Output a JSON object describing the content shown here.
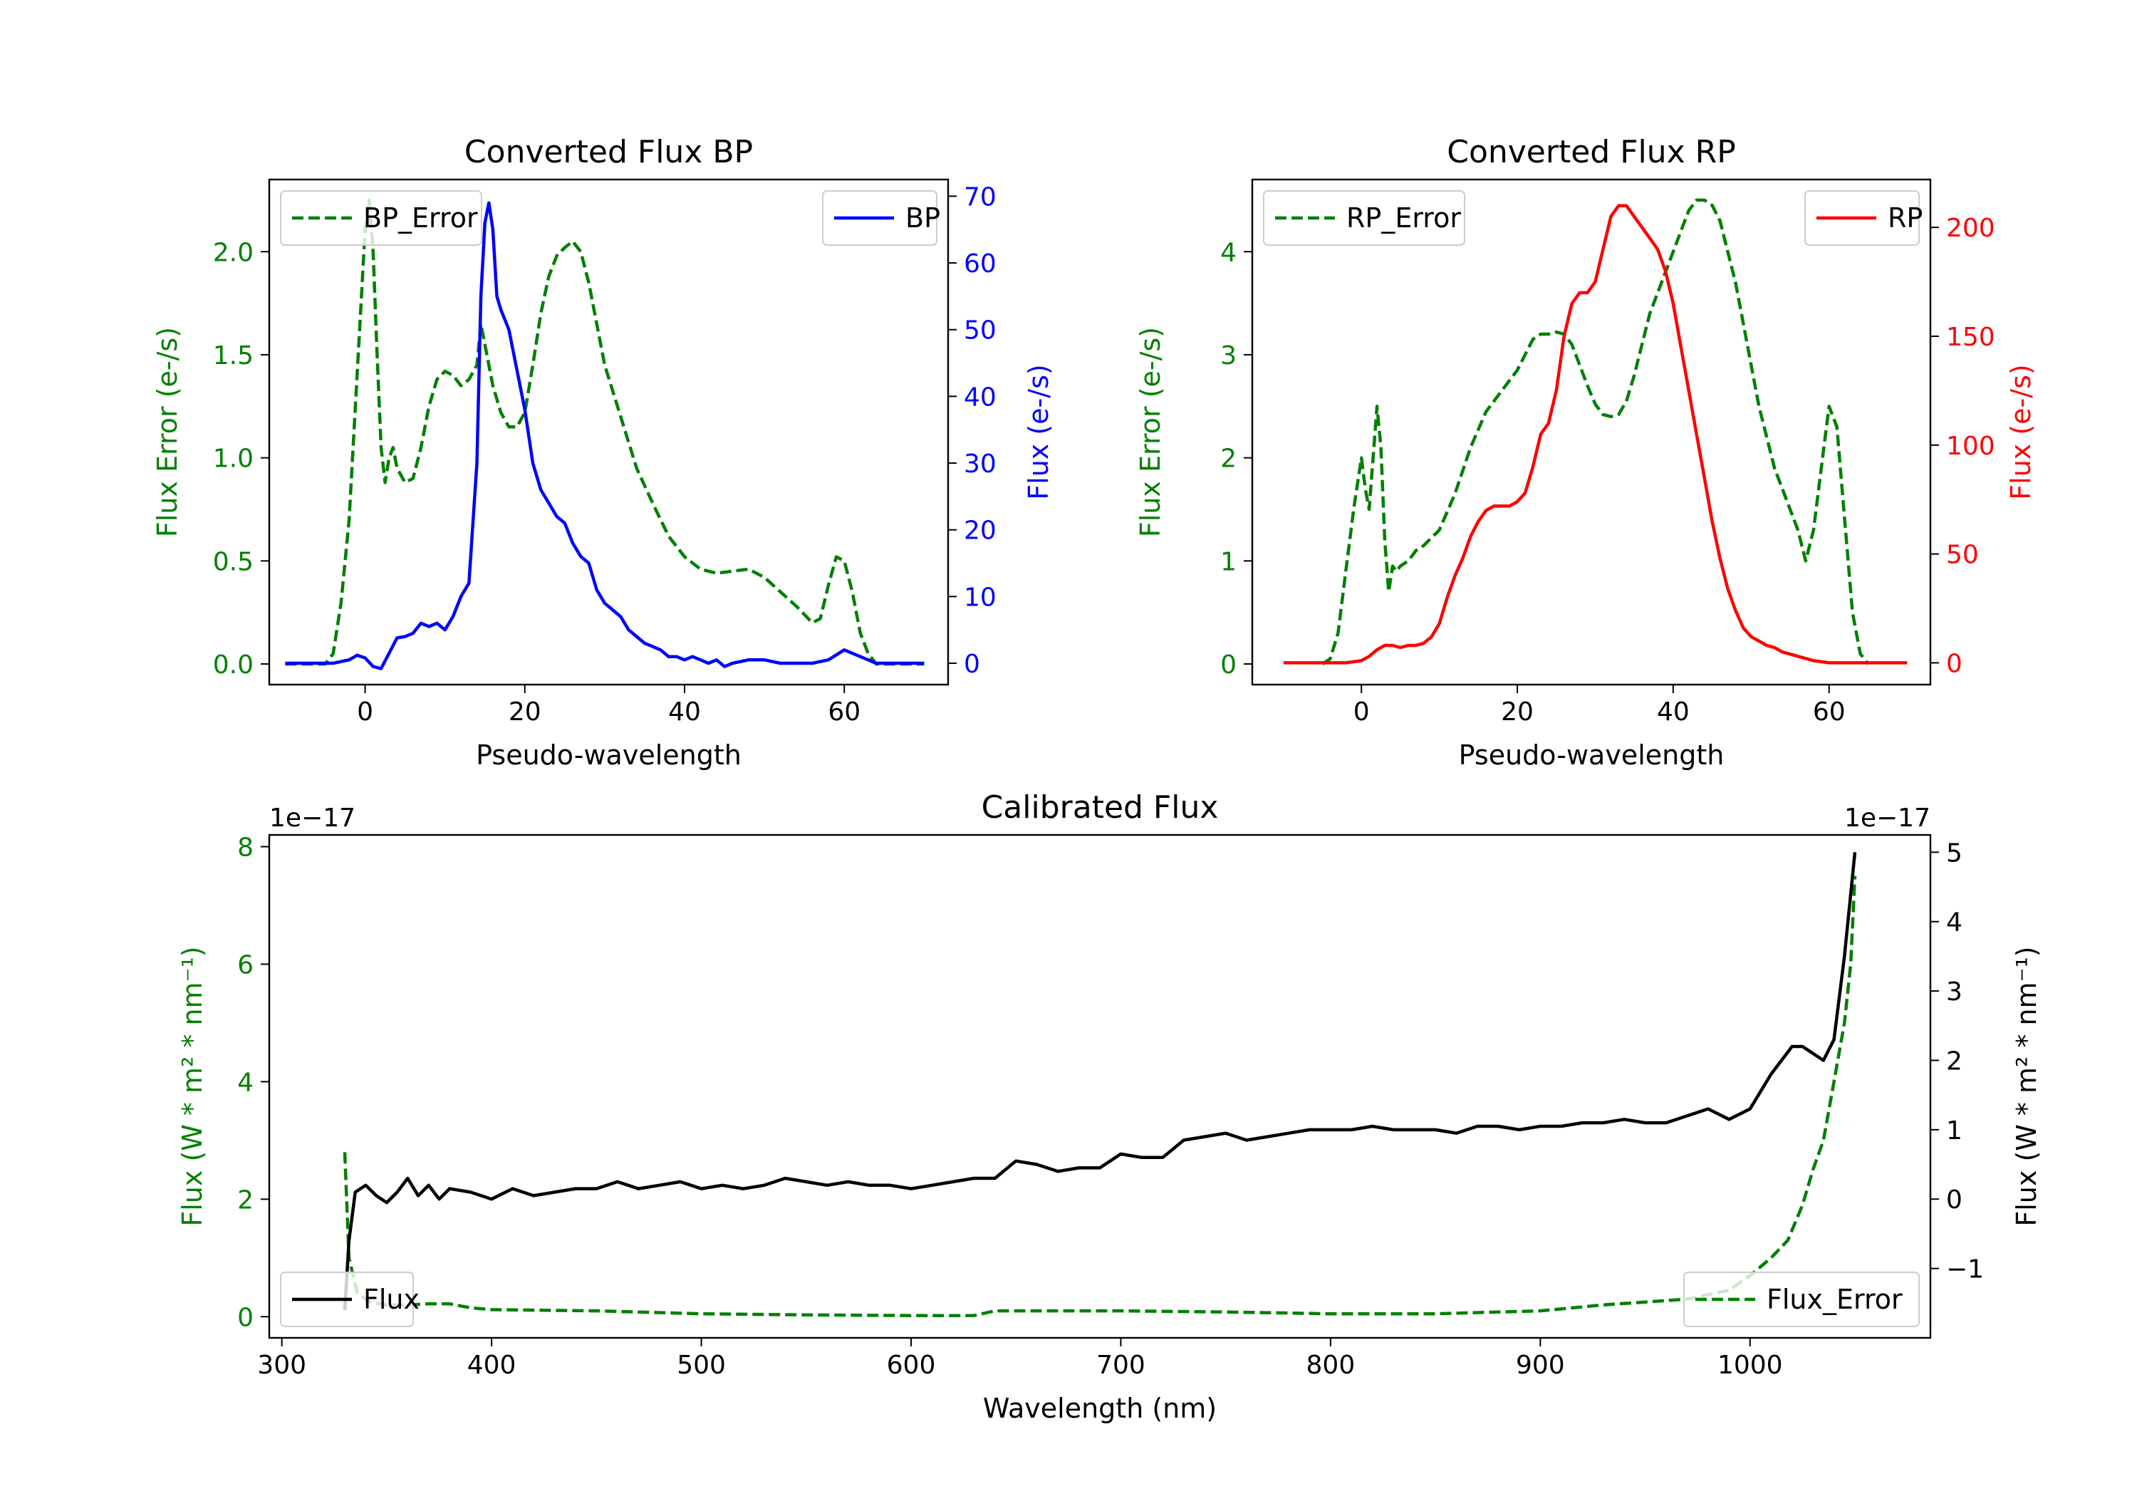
{
  "chart_data": [
    {
      "id": "bp",
      "type": "line",
      "title": "Converted Flux BP",
      "xlabel": "Pseudo-wavelength",
      "ylabel_left": "Flux Error (e-/s)",
      "ylabel_right": "Flux (e-/s)",
      "xlim": [
        -12,
        73
      ],
      "ylim_left": [
        -0.1,
        2.35
      ],
      "ylim_right": [
        -3.2,
        72.5
      ],
      "xticks": [
        0,
        20,
        40,
        60
      ],
      "xtick_labels": [
        "0",
        "20",
        "40",
        "60"
      ],
      "yticks_left": [
        0,
        0.5,
        1,
        1.5,
        2
      ],
      "ytick_labels_left": [
        "0.0",
        "0.5",
        "1.0",
        "1.5",
        "2.0"
      ],
      "yticks_right": [
        0,
        10,
        20,
        30,
        40,
        50,
        60,
        70
      ],
      "ytick_labels_right": [
        "0",
        "10",
        "20",
        "30",
        "40",
        "50",
        "60",
        "70"
      ],
      "left_color": "#008000",
      "right_color": "#0000ff",
      "legend_left": "BP_Error",
      "legend_right": "BP",
      "series": [
        {
          "name": "BP_Error",
          "axis": "left",
          "color": "#008000",
          "dash": true,
          "x": [
            -10,
            -5,
            -4,
            -3,
            -2,
            -1,
            0,
            0.5,
            1,
            1.5,
            2,
            2.5,
            3,
            3.5,
            4,
            5,
            6,
            7,
            8,
            9,
            10,
            11,
            12,
            13,
            14,
            14.5,
            15,
            16,
            17,
            18,
            19,
            20,
            21,
            22,
            23,
            24,
            25,
            26,
            27,
            28,
            29,
            30,
            32,
            34,
            36,
            38,
            40,
            42,
            44,
            46,
            48,
            50,
            52,
            54,
            56,
            57,
            58,
            59,
            60,
            61,
            62,
            63,
            64,
            66,
            70
          ],
          "y": [
            0,
            0,
            0.05,
            0.3,
            0.7,
            1.4,
            2.1,
            2.25,
            2.0,
            1.5,
            1.05,
            0.88,
            1.0,
            1.05,
            0.95,
            0.88,
            0.9,
            1.05,
            1.25,
            1.38,
            1.42,
            1.4,
            1.35,
            1.38,
            1.45,
            1.65,
            1.55,
            1.35,
            1.22,
            1.15,
            1.15,
            1.22,
            1.45,
            1.7,
            1.88,
            1.98,
            2.02,
            2.05,
            2.0,
            1.85,
            1.65,
            1.45,
            1.2,
            0.95,
            0.78,
            0.62,
            0.52,
            0.46,
            0.44,
            0.45,
            0.46,
            0.42,
            0.35,
            0.28,
            0.2,
            0.22,
            0.38,
            0.52,
            0.5,
            0.35,
            0.15,
            0.05,
            0,
            0,
            0
          ]
        },
        {
          "name": "BP",
          "axis": "right",
          "color": "#0000ff",
          "dash": false,
          "x": [
            -10,
            -8,
            -6,
            -4,
            -2,
            -1,
            0,
            1,
            2,
            3,
            4,
            5,
            6,
            7,
            8,
            9,
            10,
            11,
            12,
            13,
            14,
            14.5,
            15,
            15.5,
            16,
            16.5,
            17,
            18,
            19,
            20,
            21,
            22,
            23,
            24,
            25,
            26,
            27,
            28,
            29,
            30,
            31,
            32,
            33,
            34,
            35,
            36,
            37,
            38,
            39,
            40,
            41,
            42,
            43,
            44,
            45,
            46,
            48,
            50,
            52,
            54,
            56,
            58,
            60,
            62,
            64,
            66,
            70
          ],
          "y": [
            0,
            0,
            0,
            0,
            0.5,
            1.2,
            0.8,
            -0.5,
            -0.8,
            1.5,
            3.8,
            4,
            4.5,
            6,
            5.5,
            6,
            5,
            7,
            10,
            12,
            30,
            55,
            66,
            69,
            65,
            55,
            53,
            50,
            44,
            38,
            30,
            26,
            24,
            22,
            21,
            18,
            16,
            15,
            11,
            9,
            8,
            7,
            5,
            4,
            3,
            2.5,
            2,
            1,
            1,
            0.5,
            1,
            0.5,
            0,
            0.5,
            -0.5,
            0,
            0.5,
            0.5,
            0,
            0,
            0,
            0.5,
            2,
            1,
            0,
            0,
            0
          ]
        }
      ]
    },
    {
      "id": "rp",
      "type": "line",
      "title": "Converted Flux RP",
      "xlabel": "Pseudo-wavelength",
      "ylabel_left": "Flux Error (e-/s)",
      "ylabel_right": "Flux (e-/s)",
      "xlim": [
        -14,
        73
      ],
      "ylim_left": [
        -0.2,
        4.7
      ],
      "ylim_right": [
        -10,
        222
      ],
      "xticks": [
        0,
        20,
        40,
        60
      ],
      "xtick_labels": [
        "0",
        "20",
        "40",
        "60"
      ],
      "yticks_left": [
        0,
        1,
        2,
        3,
        4
      ],
      "ytick_labels_left": [
        "0",
        "1",
        "2",
        "3",
        "4"
      ],
      "yticks_right": [
        0,
        50,
        100,
        150,
        200
      ],
      "ytick_labels_right": [
        "0",
        "50",
        "100",
        "150",
        "200"
      ],
      "left_color": "#008000",
      "right_color": "#ff0000",
      "legend_left": "RP_Error",
      "legend_right": "RP",
      "series": [
        {
          "name": "RP_Error",
          "axis": "left",
          "color": "#008000",
          "dash": true,
          "x": [
            -5,
            -4,
            -3,
            -2,
            -1,
            0,
            0.5,
            1,
            1.5,
            2,
            2.5,
            3,
            3.5,
            4,
            4.5,
            5,
            6,
            7,
            8,
            10,
            12,
            14,
            16,
            18,
            20,
            22,
            23,
            24,
            25,
            26,
            27,
            28,
            29,
            30,
            31,
            32,
            33,
            34,
            35,
            36,
            37,
            38,
            39,
            40,
            41,
            42,
            43,
            44,
            45,
            46,
            47,
            48,
            49,
            50,
            51,
            52,
            53,
            54,
            55,
            56,
            57,
            58,
            59,
            60,
            61,
            62,
            63,
            64,
            65
          ],
          "y": [
            0,
            0.05,
            0.3,
            0.9,
            1.5,
            2.0,
            1.7,
            1.5,
            2.0,
            2.5,
            2.1,
            1.2,
            0.7,
            0.95,
            0.9,
            0.95,
            1.0,
            1.1,
            1.15,
            1.3,
            1.65,
            2.1,
            2.45,
            2.65,
            2.85,
            3.15,
            3.2,
            3.2,
            3.22,
            3.2,
            3.1,
            2.9,
            2.7,
            2.52,
            2.42,
            2.4,
            2.42,
            2.55,
            2.8,
            3.1,
            3.4,
            3.6,
            3.8,
            4.0,
            4.2,
            4.4,
            4.5,
            4.5,
            4.45,
            4.3,
            4.0,
            3.7,
            3.3,
            2.9,
            2.5,
            2.2,
            1.9,
            1.7,
            1.5,
            1.3,
            1.0,
            1.3,
            1.9,
            2.5,
            2.3,
            1.4,
            0.5,
            0.1,
            0
          ]
        },
        {
          "name": "RP",
          "axis": "right",
          "color": "#ff0000",
          "dash": false,
          "x": [
            -10,
            -5,
            -2,
            0,
            1,
            2,
            3,
            4,
            5,
            6,
            7,
            8,
            9,
            10,
            11,
            12,
            13,
            14,
            15,
            16,
            17,
            18,
            19,
            20,
            21,
            22,
            23,
            24,
            25,
            26,
            27,
            28,
            29,
            30,
            31,
            32,
            33,
            34,
            35,
            36,
            37,
            38,
            39,
            40,
            41,
            42,
            43,
            44,
            45,
            46,
            47,
            48,
            49,
            50,
            51,
            52,
            53,
            54,
            55,
            56,
            57,
            58,
            59,
            60,
            62,
            65,
            70
          ],
          "y": [
            0,
            0,
            0,
            1,
            3,
            6,
            8,
            8,
            7,
            8,
            8,
            9,
            12,
            18,
            30,
            40,
            48,
            58,
            65,
            70,
            72,
            72,
            72,
            74,
            78,
            90,
            105,
            110,
            125,
            150,
            165,
            170,
            170,
            175,
            190,
            205,
            210,
            210,
            205,
            200,
            195,
            190,
            180,
            165,
            145,
            125,
            105,
            85,
            65,
            48,
            34,
            24,
            16,
            12,
            10,
            8,
            7,
            5,
            4,
            3,
            2,
            1,
            0.5,
            0,
            0,
            0,
            0
          ]
        }
      ]
    },
    {
      "id": "cal",
      "type": "line",
      "title": "Calibrated Flux",
      "xlabel": "Wavelength (nm)",
      "ylabel_left": "Flux (W * m² * nm⁻¹)",
      "ylabel_right": "Flux (W * m² * nm⁻¹)",
      "offset_left": "1e−17",
      "offset_right": "1e−17",
      "xlim": [
        294,
        1086
      ],
      "ylim_left": [
        -0.36,
        8.2
      ],
      "ylim_right": [
        -2.0,
        5.25
      ],
      "xticks": [
        300,
        400,
        500,
        600,
        700,
        800,
        900,
        1000
      ],
      "xtick_labels": [
        "300",
        "400",
        "500",
        "600",
        "700",
        "800",
        "900",
        "1000"
      ],
      "yticks_left": [
        0,
        2,
        4,
        6,
        8
      ],
      "ytick_labels_left": [
        "0",
        "2",
        "4",
        "6",
        "8"
      ],
      "yticks_right": [
        -1,
        0,
        1,
        2,
        3,
        4,
        5
      ],
      "ytick_labels_right": [
        "−1",
        "0",
        "1",
        "2",
        "3",
        "4",
        "5"
      ],
      "left_color": "#008000",
      "right_color": "#000000",
      "legend_left": "Flux",
      "legend_right": "Flux_Error",
      "legend_left_color": "#000000",
      "legend_left_dash": false,
      "legend_right_color": "#008000",
      "legend_right_dash": true,
      "series": [
        {
          "name": "Flux_Error",
          "axis": "left",
          "color": "#008000",
          "dash": true,
          "x": [
            330,
            332,
            336,
            342,
            350,
            360,
            370,
            380,
            390,
            400,
            450,
            500,
            550,
            600,
            630,
            640,
            650,
            700,
            750,
            800,
            850,
            900,
            930,
            950,
            970,
            990,
            1000,
            1010,
            1018,
            1025,
            1030,
            1035,
            1040,
            1045,
            1048,
            1050
          ],
          "y": [
            2.8,
            1.0,
            0.4,
            0.25,
            0.2,
            0.2,
            0.22,
            0.22,
            0.15,
            0.12,
            0.1,
            0.05,
            0.03,
            0.02,
            0.02,
            0.1,
            0.1,
            0.1,
            0.08,
            0.05,
            0.05,
            0.1,
            0.2,
            0.25,
            0.3,
            0.45,
            0.7,
            1.0,
            1.3,
            1.9,
            2.5,
            3.0,
            4.0,
            5.0,
            6.0,
            7.5
          ]
        },
        {
          "name": "Flux",
          "axis": "right",
          "color": "#000000",
          "dash": false,
          "x": [
            330,
            332,
            335,
            340,
            345,
            350,
            355,
            360,
            365,
            370,
            375,
            380,
            390,
            400,
            410,
            420,
            430,
            440,
            450,
            460,
            470,
            480,
            490,
            500,
            510,
            520,
            530,
            540,
            550,
            560,
            570,
            580,
            590,
            600,
            610,
            620,
            630,
            640,
            650,
            660,
            670,
            680,
            690,
            700,
            710,
            720,
            730,
            740,
            750,
            760,
            770,
            780,
            790,
            800,
            810,
            820,
            830,
            840,
            850,
            860,
            870,
            880,
            890,
            900,
            910,
            920,
            930,
            940,
            950,
            960,
            970,
            980,
            990,
            1000,
            1010,
            1020,
            1025,
            1030,
            1035,
            1040,
            1045,
            1050
          ],
          "y": [
            -1.6,
            -0.6,
            0.1,
            0.2,
            0.05,
            -0.05,
            0.1,
            0.3,
            0.05,
            0.2,
            0.0,
            0.15,
            0.1,
            0.0,
            0.15,
            0.05,
            0.1,
            0.15,
            0.15,
            0.25,
            0.15,
            0.2,
            0.25,
            0.15,
            0.2,
            0.15,
            0.2,
            0.3,
            0.25,
            0.2,
            0.25,
            0.2,
            0.2,
            0.15,
            0.2,
            0.25,
            0.3,
            0.3,
            0.55,
            0.5,
            0.4,
            0.45,
            0.45,
            0.65,
            0.6,
            0.6,
            0.85,
            0.9,
            0.95,
            0.85,
            0.9,
            0.95,
            1.0,
            1.0,
            1.0,
            1.05,
            1.0,
            1.0,
            1.0,
            0.95,
            1.05,
            1.05,
            1.0,
            1.05,
            1.05,
            1.1,
            1.1,
            1.15,
            1.1,
            1.1,
            1.2,
            1.3,
            1.15,
            1.3,
            1.8,
            2.2,
            2.2,
            2.1,
            2.0,
            2.3,
            3.5,
            5.0
          ]
        }
      ]
    }
  ]
}
